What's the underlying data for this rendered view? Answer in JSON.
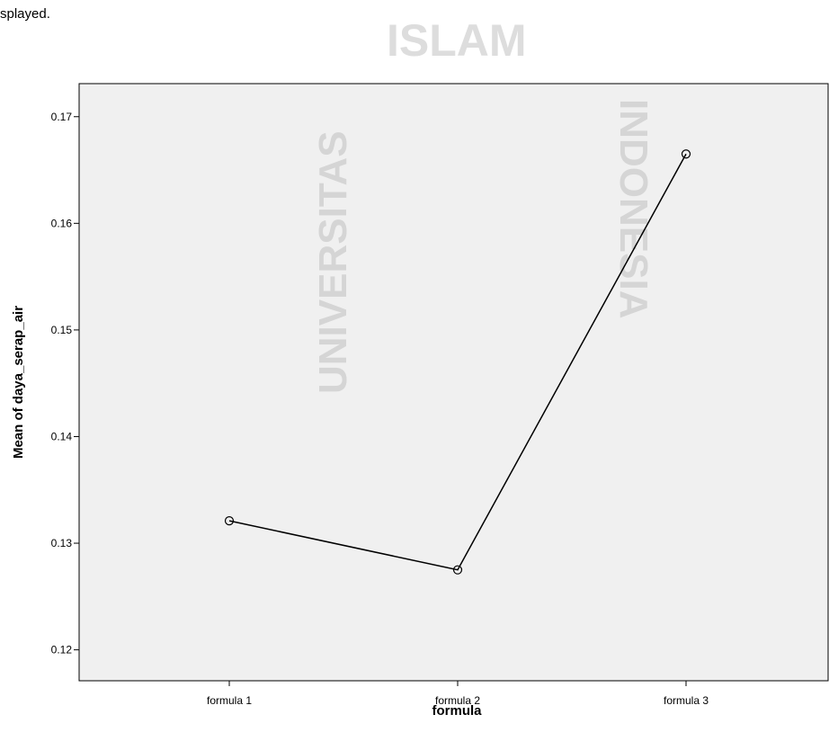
{
  "page_text": "splayed.",
  "watermark": [
    "UNIVERSITAS",
    "ISLAM",
    "INDONESIA"
  ],
  "chart_data": {
    "type": "line",
    "x_label": "formula",
    "y_label": "Mean of daya_serap_air",
    "categories": [
      "formula 1",
      "formula 2",
      "formula 3"
    ],
    "series": [
      {
        "name": "daya_serap_air",
        "color": "#000000",
        "values": [
          0.1321,
          0.1275,
          0.1665
        ]
      }
    ],
    "ylim": [
      0.1171,
      0.1731
    ],
    "yticks": [
      0.12,
      0.13,
      0.14,
      0.15,
      0.16,
      0.17
    ],
    "background": "#f0f0f0"
  }
}
